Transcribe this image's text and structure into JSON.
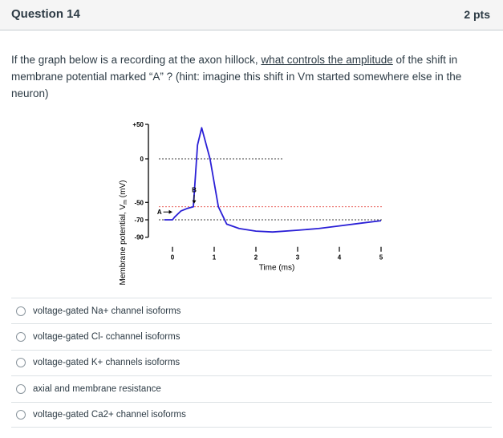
{
  "question": {
    "title": "Question 14",
    "points": "2 pts",
    "text_before": "If the graph below is a recording at the axon hillock, ",
    "text_underlined": "what controls the amplitude",
    "text_after": " of the shift in membrane potential marked “A” ? (hint: imagine this shift in Vm started somewhere else in the neuron)"
  },
  "figure": {
    "ylabel": "Membrane potential, V",
    "ylabel_sub": "m",
    "ylabel_unit": " (mV)",
    "y_ticks": [
      "+50",
      "0",
      "-50",
      "-70",
      "-90"
    ],
    "xlabel": "Time (ms)",
    "x_ticks": [
      "0",
      "1",
      "2",
      "3",
      "4",
      "5"
    ],
    "marker_a": "A",
    "marker_b": "B",
    "trace_color": "#2a1fd6",
    "threshold_color": "#e0302a"
  },
  "chart_data": {
    "type": "line",
    "xlabel": "Time (ms)",
    "ylabel": "Membrane potential, Vm (mV)",
    "xlim": [
      0,
      5
    ],
    "ylim": [
      -90,
      50
    ],
    "reference_lines": [
      {
        "y": 0,
        "style": "dashed",
        "color": "#000000"
      },
      {
        "y": -55,
        "style": "dashed",
        "color": "#e0302a"
      },
      {
        "y": -70,
        "style": "dashed",
        "color": "#000000"
      }
    ],
    "series": [
      {
        "x": [
          -0.2,
          0.0,
          0.05,
          0.2,
          0.35,
          0.5,
          0.6,
          0.7,
          0.9,
          1.1,
          1.3,
          1.6,
          2.0,
          2.4,
          3.0,
          3.5,
          4.0,
          4.5,
          5.0
        ],
        "y": [
          -70,
          -70,
          -67,
          -60,
          -57,
          -55,
          20,
          45,
          0,
          -55,
          -75,
          -80,
          -83,
          -84,
          -82,
          -80,
          -77,
          -74,
          -71
        ]
      }
    ]
  },
  "answers": [
    "voltage-gated Na+ channel isoforms",
    "voltage-gated Cl- cchannel isoforms",
    "voltage-gated K+ channels isoforms",
    "axial and membrane resistance",
    "voltage-gated Ca2+ channel isoforms"
  ]
}
